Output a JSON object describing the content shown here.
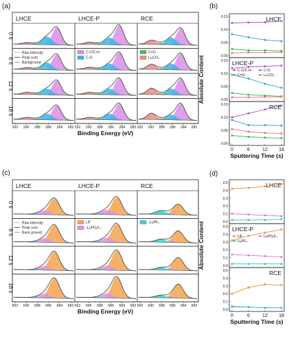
{
  "panels": {
    "a": "(a)",
    "b": "(b)",
    "c": "(c)",
    "d": "(d)"
  },
  "xps_grid": [
    {
      "id": "a",
      "columns": [
        "LHCE",
        "LHCE-P",
        "RCE"
      ],
      "rows": [
        "0 s",
        "6 s",
        "12 s",
        "18 s"
      ],
      "xlabel": "Binding Energy (eV)",
      "xticks": [
        "292",
        "290",
        "288",
        "286",
        "284",
        "282"
      ],
      "xrange": [
        292,
        282
      ],
      "legend_lines": [
        "Raw intensity",
        "Peak sum",
        "Background"
      ],
      "legend_boxes_col2": [
        {
          "label": "C-C/C-H",
          "color": "#d98ee6"
        },
        {
          "label": "C-O",
          "color": "#38b7e8"
        }
      ],
      "legend_boxes_col3": [
        {
          "label": "C=O",
          "color": "#3fbf58"
        },
        {
          "label": "Li₂CO₃",
          "color": "#f08a84"
        }
      ],
      "components": [
        {
          "name": "C-C/C-H",
          "center": 284.8,
          "width": 0.75,
          "color": "#d98ee6"
        },
        {
          "name": "C-O",
          "center": 286.4,
          "width": 0.8,
          "color": "#38b7e8"
        },
        {
          "name": "C=O",
          "center": 288.2,
          "width": 0.7,
          "color": "#3fbf58"
        },
        {
          "name": "Li2CO3",
          "center": 289.8,
          "width": 0.75,
          "color": "#f08a84"
        }
      ],
      "amplitudes": [
        [
          [
            0.85,
            0.4,
            0.05,
            0.08
          ],
          [
            0.95,
            0.35,
            0.05,
            0.1
          ],
          [
            0.8,
            0.35,
            0.08,
            0.2
          ]
        ],
        [
          [
            0.75,
            0.35,
            0.05,
            0.08
          ],
          [
            0.85,
            0.3,
            0.05,
            0.1
          ],
          [
            0.8,
            0.3,
            0.06,
            0.25
          ]
        ],
        [
          [
            0.7,
            0.3,
            0.05,
            0.1
          ],
          [
            0.8,
            0.3,
            0.05,
            0.1
          ],
          [
            0.8,
            0.3,
            0.06,
            0.3
          ]
        ],
        [
          [
            0.7,
            0.3,
            0.05,
            0.1
          ],
          [
            0.8,
            0.3,
            0.05,
            0.1
          ],
          [
            0.8,
            0.25,
            0.06,
            0.3
          ]
        ]
      ]
    },
    {
      "id": "c",
      "columns": [
        "LHCE",
        "LHCE-P",
        "RCE"
      ],
      "rows": [
        "0 s",
        "6 s",
        "12 s",
        "18 s"
      ],
      "xlabel": "Binding Energy (eV)",
      "xticks": [
        "692",
        "690",
        "688",
        "686",
        "684",
        "682"
      ],
      "xrange": [
        692,
        682
      ],
      "legend_lines": [
        "Raw intensity",
        "Peak sum",
        "Back ground"
      ],
      "legend_boxes_col2": [
        {
          "label": "LiF",
          "color": "#f4a34e"
        },
        {
          "label": "-LiₓPOᵧF₂",
          "color": "#e58fe3"
        }
      ],
      "legend_boxes_col3": [
        {
          "label": "-LiₓPFᵧ",
          "color": "#2fd6d6"
        }
      ],
      "components": [
        {
          "name": "LiF",
          "center": 685.2,
          "width": 0.85,
          "color": "#f4a34e"
        },
        {
          "name": "LixPOyFz",
          "center": 686.8,
          "width": 0.9,
          "color": "#e58fe3"
        },
        {
          "name": "LixPFy",
          "center": 688.2,
          "width": 0.9,
          "color": "#2fd6d6"
        }
      ],
      "amplitudes": [
        [
          [
            0.7,
            0.18,
            0.02
          ],
          [
            0.75,
            0.2,
            0.03
          ],
          [
            0.45,
            0.05,
            0.15
          ]
        ],
        [
          [
            0.75,
            0.18,
            0.02
          ],
          [
            0.8,
            0.2,
            0.03
          ],
          [
            0.5,
            0.05,
            0.12
          ]
        ],
        [
          [
            0.8,
            0.18,
            0.02
          ],
          [
            0.85,
            0.2,
            0.03
          ],
          [
            0.55,
            0.05,
            0.1
          ]
        ],
        [
          [
            0.85,
            0.18,
            0.02
          ],
          [
            0.9,
            0.2,
            0.03
          ],
          [
            0.6,
            0.05,
            0.1
          ]
        ]
      ]
    }
  ],
  "chart_data": [
    {
      "id": "b",
      "type": "line",
      "x": [
        0,
        6,
        12,
        18
      ],
      "xticks": [
        "0",
        "6",
        "12",
        "18"
      ],
      "xlabel": "Sputtering Time (s)",
      "ylabel": "Absolute Content",
      "subplots": [
        {
          "title": "LHCE",
          "ylim": [
            0,
            0.15
          ],
          "yticks": [
            "0.00",
            "0.05",
            "0.10",
            "0.15"
          ],
          "series": [
            {
              "label": "C-C/C-H",
              "color": "#a64dd6",
              "values": [
                0.125,
                0.127,
                0.128,
                0.132
              ]
            },
            {
              "label": "C-O",
              "color": "#2a9fd6",
              "values": [
                0.082,
                0.07,
                0.06,
                0.055
              ]
            },
            {
              "label": "C=O",
              "color": "#2db84c",
              "values": [
                0.025,
                0.02,
                0.02,
                0.018
              ]
            },
            {
              "label": "Li₂CO₃",
              "color": "#ea6b6b",
              "values": [
                0.01,
                0.012,
                0.012,
                0.013
              ]
            }
          ]
        },
        {
          "title": "LHCE-P",
          "ylim": [
            0,
            0.15
          ],
          "yticks": [
            "0.00",
            "0.05",
            "0.10",
            "0.15"
          ],
          "legend": [
            {
              "label": "C-C/C-H",
              "color": "#a64dd6"
            },
            {
              "label": "C-O",
              "color": "#2a9fd6"
            },
            {
              "label": "C=O",
              "color": "#2db84c"
            },
            {
              "label": "Li₂CO₃",
              "color": "#ea6b6b"
            }
          ],
          "series": [
            {
              "label": "C-C/C-H",
              "color": "#a64dd6",
              "values": [
                0.12,
                0.125,
                0.127,
                0.13
              ]
            },
            {
              "label": "C-O",
              "color": "#2a9fd6",
              "values": [
                0.095,
                0.08,
                0.06,
                0.045
              ]
            },
            {
              "label": "C=O",
              "color": "#2db84c",
              "values": [
                0.025,
                0.018,
                0.015,
                0.012
              ]
            },
            {
              "label": "Li₂CO₃",
              "color": "#ea6b6b",
              "values": [
                0.008,
                0.008,
                0.01,
                0.01
              ]
            }
          ]
        },
        {
          "title": "RCE",
          "ylim": [
            0,
            0.15
          ],
          "yticks": [
            "0.00",
            "0.05",
            "0.10",
            "0.15"
          ],
          "series": [
            {
              "label": "C-C/C-H",
              "color": "#a64dd6",
              "values": [
                0.1,
                0.115,
                0.13,
                0.145
              ]
            },
            {
              "label": "C-O",
              "color": "#2a9fd6",
              "values": [
                0.09,
                0.07,
                0.07,
                0.068
              ]
            },
            {
              "label": "Li₂CO₃",
              "color": "#ea6b6b",
              "values": [
                0.055,
                0.045,
                0.04,
                0.038
              ]
            },
            {
              "label": "C=O",
              "color": "#2db84c",
              "values": [
                0.03,
                0.025,
                0.022,
                0.02
              ]
            }
          ]
        }
      ]
    },
    {
      "id": "d",
      "type": "line",
      "x": [
        0,
        6,
        12,
        18
      ],
      "xticks": [
        "0",
        "6",
        "12",
        "18"
      ],
      "xlabel": "Sputtering Time (s)",
      "ylabel": "Absolute Content",
      "subplots": [
        {
          "title": "LHCE",
          "ylim": [
            0,
            0.5
          ],
          "yticks": [
            "0.0",
            "0.1",
            "0.2",
            "0.3",
            "0.4",
            "0.5"
          ],
          "series": [
            {
              "label": "LiF",
              "color": "#f08a2a",
              "values": [
                0.42,
                0.43,
                0.45,
                0.48
              ]
            },
            {
              "label": "LiₓPOᵧF₂",
              "color": "#e06fe0",
              "values": [
                0.1,
                0.09,
                0.08,
                0.07
              ]
            },
            {
              "label": "LiₓPFᵧ",
              "color": "#21c9c9",
              "values": [
                0.02,
                0.02,
                0.02,
                0.03
              ]
            }
          ]
        },
        {
          "title": "LHCE-P",
          "ylim": [
            0,
            0.5
          ],
          "yticks": [
            "0.0",
            "0.1",
            "0.2",
            "0.3",
            "0.4",
            "0.5"
          ],
          "legend": [
            {
              "label": "LiF",
              "color": "#f08a2a"
            },
            {
              "label": "LiₓPOᵧF₂",
              "color": "#e06fe0"
            },
            {
              "label": "LiₓPFᵧ",
              "color": "#21c9c9"
            }
          ],
          "series": [
            {
              "label": "LiF",
              "color": "#f08a2a",
              "values": [
                0.32,
                0.38,
                0.42,
                0.46
              ]
            },
            {
              "label": "LiₓPOᵧF₂",
              "color": "#e06fe0",
              "values": [
                0.14,
                0.13,
                0.12,
                0.11
              ]
            },
            {
              "label": "LiₓPFᵧ",
              "color": "#21c9c9",
              "values": [
                0.02,
                0.02,
                0.02,
                0.02
              ]
            }
          ]
        },
        {
          "title": "RCE",
          "ylim": [
            0,
            0.5
          ],
          "yticks": [
            "0.0",
            "0.1",
            "0.2",
            "0.3",
            "0.4",
            "0.5"
          ],
          "series": [
            {
              "label": "LiF",
              "color": "#f08a2a",
              "values": [
                0.2,
                0.28,
                0.32,
                0.31
              ]
            },
            {
              "label": "LiₓPOᵧF₂",
              "color": "#e06fe0",
              "values": [
                0.03,
                0.03,
                0.02,
                0.02
              ]
            },
            {
              "label": "LiₓPFᵧ",
              "color": "#21c9c9",
              "values": [
                0.04,
                0.03,
                0.02,
                0.02
              ]
            }
          ]
        }
      ]
    }
  ]
}
